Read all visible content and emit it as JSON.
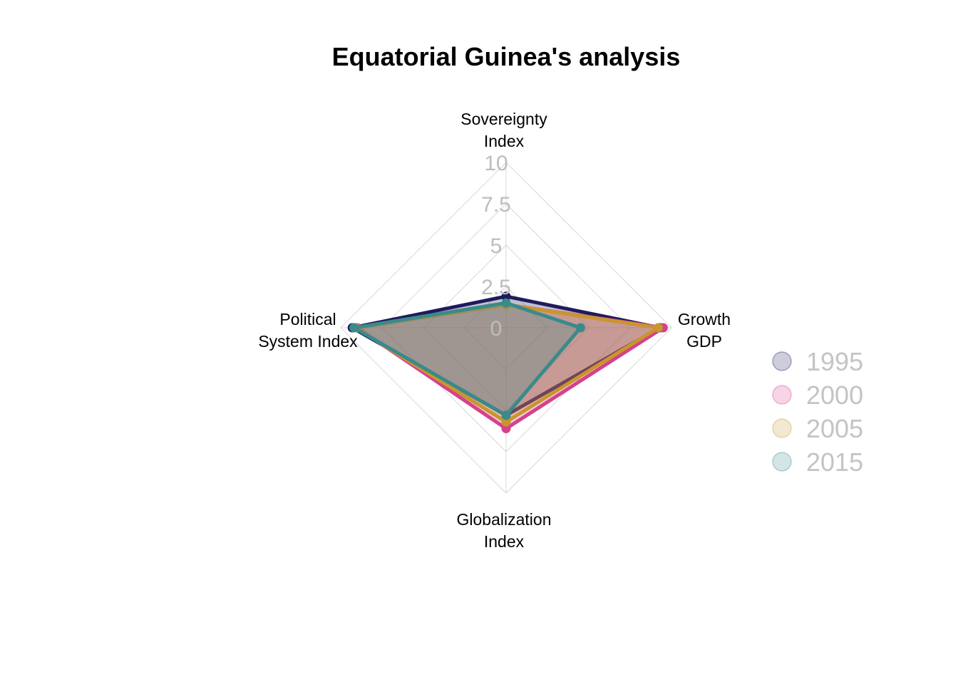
{
  "chart_data": {
    "type": "radar",
    "title": "Equatorial Guinea's analysis",
    "axes": [
      {
        "lines": [
          "Sovereignty",
          "Index"
        ]
      },
      {
        "lines": [
          "Growth",
          "GDP"
        ]
      },
      {
        "lines": [
          "Globalization",
          "Index"
        ]
      },
      {
        "lines": [
          "Political",
          "System Index"
        ]
      }
    ],
    "range": [
      0,
      10
    ],
    "ticks": [
      "0",
      "2.5",
      "5",
      "7.5",
      "10"
    ],
    "grid": true,
    "legend_position": "right",
    "series": [
      {
        "name": "1995",
        "color": "#1f1b5c",
        "values": [
          1.9,
          9.3,
          5.3,
          9.3
        ]
      },
      {
        "name": "2000",
        "color": "#d5418c",
        "values": [
          1.4,
          9.5,
          6.1,
          9.0
        ]
      },
      {
        "name": "2005",
        "color": "#c8962c",
        "values": [
          1.4,
          9.2,
          5.7,
          9.1
        ]
      },
      {
        "name": "2015",
        "color": "#3a8a8a",
        "values": [
          1.5,
          4.5,
          5.3,
          9.2
        ]
      }
    ]
  }
}
